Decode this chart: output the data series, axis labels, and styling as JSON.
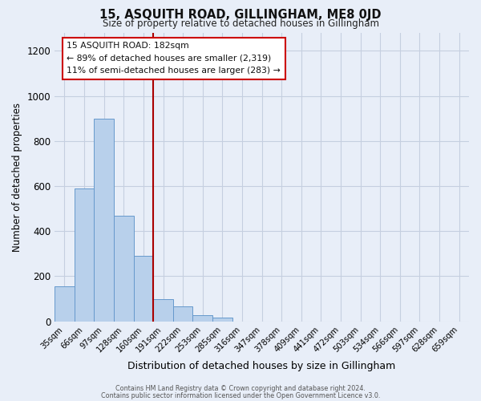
{
  "title": "15, ASQUITH ROAD, GILLINGHAM, ME8 0JD",
  "subtitle": "Size of property relative to detached houses in Gillingham",
  "xlabel": "Distribution of detached houses by size in Gillingham",
  "ylabel": "Number of detached properties",
  "bar_labels": [
    "35sqm",
    "66sqm",
    "97sqm",
    "128sqm",
    "160sqm",
    "191sqm",
    "222sqm",
    "253sqm",
    "285sqm",
    "316sqm",
    "347sqm",
    "378sqm",
    "409sqm",
    "441sqm",
    "472sqm",
    "503sqm",
    "534sqm",
    "566sqm",
    "597sqm",
    "628sqm",
    "659sqm"
  ],
  "bar_values": [
    155,
    590,
    900,
    470,
    290,
    100,
    65,
    28,
    15,
    0,
    0,
    0,
    0,
    0,
    0,
    0,
    0,
    0,
    0,
    0,
    0
  ],
  "bar_color": "#b8d0eb",
  "bar_edge_color": "#6699cc",
  "vline_x": 4.5,
  "vline_color": "#aa0000",
  "ylim": [
    0,
    1280
  ],
  "yticks": [
    0,
    200,
    400,
    600,
    800,
    1000,
    1200
  ],
  "annotation_title": "15 ASQUITH ROAD: 182sqm",
  "annotation_line1": "← 89% of detached houses are smaller (2,319)",
  "annotation_line2": "11% of semi-detached houses are larger (283) →",
  "annotation_box_color": "#ffffff",
  "annotation_box_edge": "#cc0000",
  "footer1": "Contains HM Land Registry data © Crown copyright and database right 2024.",
  "footer2": "Contains public sector information licensed under the Open Government Licence v3.0.",
  "bg_color": "#e8eef8",
  "plot_bg_color": "#e8eef8",
  "grid_color": "#c5cfe0"
}
